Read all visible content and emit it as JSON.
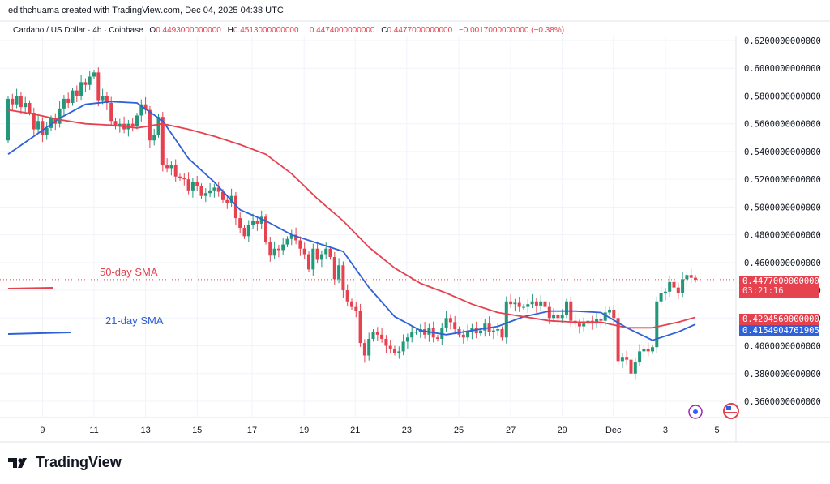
{
  "header": {
    "credit": "edithchuama created with TradingView.com, Dec 04, 2025 04:38 UTC"
  },
  "legend": {
    "symbol": "Cardano / US Dollar · 4h · Coinbase",
    "o_label": "O",
    "o": "0.4493000000000",
    "h_label": "H",
    "h": "0.4513000000000",
    "l_label": "L",
    "l": "0.4474000000000",
    "c_label": "C",
    "c": "0.4477000000000",
    "change": "−0.0017000000000 (−0.38%)"
  },
  "tags": {
    "last_price": "0.4477000000000",
    "countdown": "03:21:16",
    "sma50": "0.4204560000000",
    "sma21": "0.4154904761905"
  },
  "annotations": {
    "sma50_label": "50-day SMA",
    "sma21_label": "21-day SMA"
  },
  "brand": {
    "name": "TradingView"
  },
  "colors": {
    "up": "#22977a",
    "down": "#e5414f",
    "sma50": "#e5414f",
    "sma21": "#2f61d9",
    "grid": "#f0f3fa"
  },
  "chart_data": {
    "type": "candlestick",
    "ylim": [
      0.35,
      0.625
    ],
    "y_ticks": [
      "0.6200000000000",
      "0.6000000000000",
      "0.5800000000000",
      "0.5600000000000",
      "0.5400000000000",
      "0.5200000000000",
      "0.5000000000000",
      "0.4800000000000",
      "0.4600000000000",
      "0.4400000000000",
      "0.4200000000000",
      "0.4000000000000",
      "0.3800000000000",
      "0.3600000000000"
    ],
    "y_tick_values": [
      0.62,
      0.6,
      0.58,
      0.56,
      0.54,
      0.52,
      0.5,
      0.48,
      0.46,
      0.44,
      0.42,
      0.4,
      0.38,
      0.36
    ],
    "x_ticks": [
      {
        "label": "9",
        "candle": 8
      },
      {
        "label": "11",
        "candle": 20
      },
      {
        "label": "13",
        "candle": 32
      },
      {
        "label": "15",
        "candle": 44
      },
      {
        "label": "17",
        "candle": 56.8
      },
      {
        "label": "19",
        "candle": 68.9
      },
      {
        "label": "21",
        "candle": 80.8
      },
      {
        "label": "23",
        "candle": 92.8
      },
      {
        "label": "25",
        "candle": 104.9
      },
      {
        "label": "27",
        "candle": 117
      },
      {
        "label": "29",
        "candle": 129
      },
      {
        "label": "Dec",
        "candle": 140.9
      },
      {
        "label": "3",
        "candle": 153
      },
      {
        "label": "5",
        "candle": 165
      }
    ],
    "first_open": 0.548,
    "closes": [
      0.578,
      0.574,
      0.58,
      0.572,
      0.575,
      0.568,
      0.556,
      0.562,
      0.552,
      0.557,
      0.564,
      0.56,
      0.571,
      0.578,
      0.575,
      0.584,
      0.58,
      0.59,
      0.588,
      0.594,
      0.597,
      0.577,
      0.58,
      0.575,
      0.562,
      0.558,
      0.56,
      0.556,
      0.56,
      0.558,
      0.566,
      0.574,
      0.57,
      0.548,
      0.552,
      0.565,
      0.53,
      0.528,
      0.53,
      0.522,
      0.521,
      0.52,
      0.512,
      0.518,
      0.515,
      0.508,
      0.51,
      0.512,
      0.514,
      0.511,
      0.505,
      0.503,
      0.508,
      0.492,
      0.485,
      0.479,
      0.487,
      0.49,
      0.488,
      0.493,
      0.475,
      0.465,
      0.47,
      0.469,
      0.473,
      0.477,
      0.48,
      0.476,
      0.47,
      0.466,
      0.455,
      0.47,
      0.462,
      0.466,
      0.47,
      0.464,
      0.448,
      0.458,
      0.44,
      0.432,
      0.428,
      0.425,
      0.402,
      0.393,
      0.405,
      0.41,
      0.408,
      0.405,
      0.4,
      0.398,
      0.395,
      0.396,
      0.403,
      0.406,
      0.41,
      0.41,
      0.412,
      0.408,
      0.413,
      0.406,
      0.405,
      0.413,
      0.42,
      0.417,
      0.412,
      0.408,
      0.406,
      0.41,
      0.413,
      0.409,
      0.411,
      0.416,
      0.41,
      0.411,
      0.412,
      0.406,
      0.432,
      0.43,
      0.431,
      0.428,
      0.428,
      0.43,
      0.432,
      0.429,
      0.432,
      0.428,
      0.42,
      0.422,
      0.42,
      0.422,
      0.432,
      0.418,
      0.416,
      0.414,
      0.416,
      0.418,
      0.416,
      0.419,
      0.418,
      0.424,
      0.426,
      0.42,
      0.389,
      0.392,
      0.39,
      0.38,
      0.388,
      0.396,
      0.398,
      0.396,
      0.399,
      0.432,
      0.438,
      0.439,
      0.446,
      0.442,
      0.438,
      0.448,
      0.451,
      0.449,
      0.4477
    ],
    "series": [
      {
        "name": "21-day SMA",
        "points": [
          [
            0,
            0.538
          ],
          [
            6,
            0.551
          ],
          [
            12,
            0.564
          ],
          [
            18,
            0.574
          ],
          [
            24,
            0.576
          ],
          [
            30,
            0.575
          ],
          [
            36,
            0.562
          ],
          [
            42,
            0.535
          ],
          [
            48,
            0.518
          ],
          [
            54,
            0.498
          ],
          [
            60,
            0.49
          ],
          [
            66,
            0.48
          ],
          [
            72,
            0.474
          ],
          [
            78,
            0.468
          ],
          [
            84,
            0.442
          ],
          [
            90,
            0.421
          ],
          [
            96,
            0.411
          ],
          [
            102,
            0.408
          ],
          [
            108,
            0.411
          ],
          [
            114,
            0.414
          ],
          [
            120,
            0.421
          ],
          [
            126,
            0.425
          ],
          [
            132,
            0.425
          ],
          [
            138,
            0.424
          ],
          [
            144,
            0.413
          ],
          [
            150,
            0.404
          ],
          [
            156,
            0.41
          ],
          [
            160,
            0.4155
          ]
        ]
      },
      {
        "name": "50-day SMA",
        "points": [
          [
            0,
            0.57
          ],
          [
            6,
            0.567
          ],
          [
            12,
            0.563
          ],
          [
            18,
            0.56
          ],
          [
            24,
            0.559
          ],
          [
            30,
            0.557
          ],
          [
            36,
            0.56
          ],
          [
            42,
            0.556
          ],
          [
            48,
            0.551
          ],
          [
            54,
            0.545
          ],
          [
            60,
            0.538
          ],
          [
            66,
            0.524
          ],
          [
            72,
            0.506
          ],
          [
            78,
            0.49
          ],
          [
            84,
            0.471
          ],
          [
            90,
            0.456
          ],
          [
            96,
            0.445
          ],
          [
            102,
            0.438
          ],
          [
            108,
            0.43
          ],
          [
            114,
            0.424
          ],
          [
            120,
            0.421
          ],
          [
            126,
            0.418
          ],
          [
            132,
            0.417
          ],
          [
            138,
            0.417
          ],
          [
            144,
            0.413
          ],
          [
            150,
            0.413
          ],
          [
            156,
            0.417
          ],
          [
            160,
            0.4205
          ]
        ]
      }
    ]
  }
}
